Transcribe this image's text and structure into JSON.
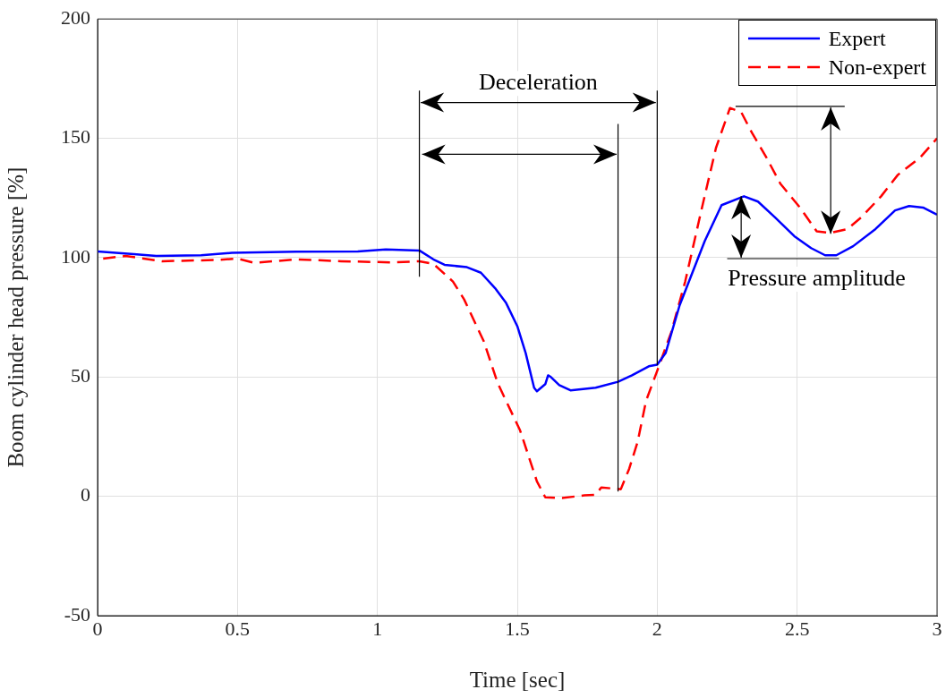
{
  "chart_data": {
    "type": "line",
    "xlabel": "Time [sec]",
    "ylabel": "Boom cylinder head pressure [%]",
    "xlim": [
      0,
      3
    ],
    "xticks": [
      0,
      0.5,
      1,
      1.5,
      2,
      2.5,
      3
    ],
    "ylim": [
      -50,
      200
    ],
    "yticks": [
      -50,
      0,
      50,
      100,
      150,
      200
    ],
    "grid": true,
    "legend": "top right",
    "marker": "none",
    "series": [
      {
        "name": "Expert",
        "color": "#0000ff",
        "line_style": "solid",
        "x": [
          0,
          0.13,
          0.21,
          0.37,
          0.48,
          0.71,
          0.93,
          1.03,
          1.15,
          1.2,
          1.24,
          1.32,
          1.37,
          1.42,
          1.46,
          1.5,
          1.53,
          1.56,
          1.57,
          1.6,
          1.61,
          1.62,
          1.65,
          1.69,
          1.78,
          1.86,
          1.91,
          1.97,
          2.0,
          2.03,
          2.08,
          2.12,
          2.17,
          2.23,
          2.31,
          2.36,
          2.42,
          2.49,
          2.55,
          2.6,
          2.64,
          2.7,
          2.78,
          2.85,
          2.9,
          2.95,
          3
        ],
        "values": [
          102.6,
          101.5,
          100.7,
          101,
          102,
          102.5,
          102.6,
          103.4,
          103,
          99.3,
          97,
          96,
          93.7,
          87.3,
          81,
          71.3,
          60,
          45.5,
          44,
          47,
          50.7,
          50,
          46.6,
          44.4,
          45.5,
          48,
          50.7,
          54.5,
          55.2,
          60,
          80,
          92,
          107,
          122,
          125.7,
          123.5,
          117,
          109,
          104,
          101,
          101,
          104.8,
          112,
          119.8,
          121.6,
          121,
          118
        ]
      },
      {
        "name": "Non-expert",
        "color": "#ff0000",
        "line_style": "dashed",
        "x": [
          0.02,
          0.1,
          0.23,
          0.42,
          0.5,
          0.56,
          0.71,
          0.87,
          1.06,
          1.15,
          1.2,
          1.27,
          1.31,
          1.38,
          1.43,
          1.51,
          1.57,
          1.6,
          1.66,
          1.74,
          1.78,
          1.8,
          1.87,
          1.9,
          1.93,
          1.96,
          2.0,
          2.05,
          2.1,
          2.16,
          2.21,
          2.26,
          2.3,
          2.34,
          2.39,
          2.44,
          2.51,
          2.57,
          2.62,
          2.68,
          2.73,
          2.8,
          2.86,
          2.94,
          3
        ],
        "values": [
          99.6,
          100.7,
          98.5,
          99,
          99.6,
          97.8,
          99.3,
          98.5,
          98,
          98.5,
          97.4,
          90,
          82.5,
          65,
          47.4,
          27.6,
          6.3,
          -0.4,
          -0.7,
          0.4,
          0.7,
          3.7,
          3,
          11.6,
          22.8,
          40,
          52.6,
          68.7,
          90,
          121,
          146,
          162.7,
          161,
          152,
          142,
          131,
          121,
          111,
          110.4,
          112,
          117,
          125.7,
          134.7,
          142,
          150
        ]
      }
    ],
    "ref_lines": [
      {
        "axis": "x",
        "value": 1.15,
        "color": "#000000"
      },
      {
        "axis": "x",
        "value": 1.86,
        "color": "#000000"
      },
      {
        "axis": "x",
        "value": 2.0,
        "color": "#000000"
      }
    ],
    "annotations": [
      "Deceleration",
      {
        "text": "Pressure amplitude",
        "x": 2.3,
        "y": 125.7
      }
    ]
  }
}
